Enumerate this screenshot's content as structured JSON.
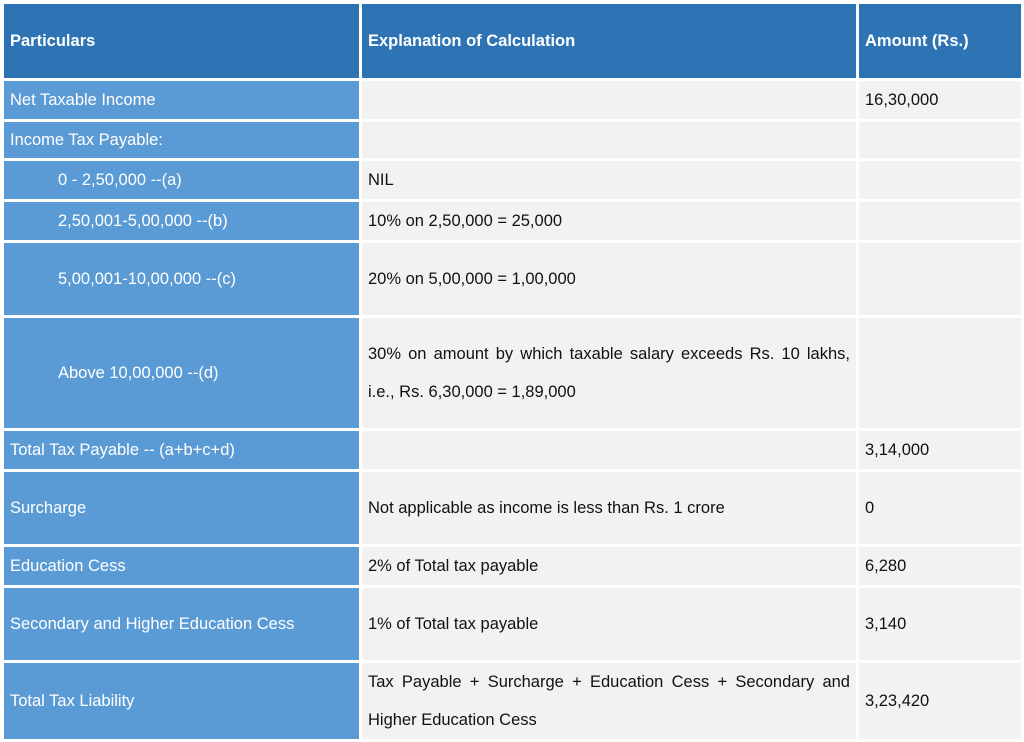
{
  "headers": {
    "particulars": "Particulars",
    "explanation": "Explanation of Calculation",
    "amount": "Amount (Rs.)"
  },
  "rows": [
    {
      "particular": "Net Taxable Income",
      "explanation": "",
      "amount": "16,30,000"
    },
    {
      "particular": "Income Tax Payable:",
      "explanation": "",
      "amount": ""
    },
    {
      "particular": "0 - 2,50,000 --(a)",
      "explanation": "NIL",
      "amount": ""
    },
    {
      "particular": "2,50,001-5,00,000 --(b)",
      "explanation": "10% on 2,50,000 = 25,000",
      "amount": ""
    },
    {
      "particular": "5,00,001-10,00,000 --(c)",
      "explanation": "20% on 5,00,000 = 1,00,000",
      "amount": ""
    },
    {
      "particular": "Above 10,00,000 --(d)",
      "explanation": "30% on amount by which taxable salary exceeds Rs. 10 lakhs, i.e., Rs. 6,30,000 = 1,89,000",
      "amount": ""
    },
    {
      "particular": "Total Tax Payable -- (a+b+c+d)",
      "explanation": "",
      "amount": "3,14,000"
    },
    {
      "particular": "Surcharge",
      "explanation": "Not applicable as income is less than Rs. 1 crore",
      "amount": "0"
    },
    {
      "particular": "Education Cess",
      "explanation": "2% of Total tax payable",
      "amount": "6,280"
    },
    {
      "particular": "Secondary and Higher Education Cess",
      "explanation": "1% of Total tax payable",
      "amount": "3,140"
    },
    {
      "particular": "Total Tax Liability",
      "explanation": "Tax Payable + Surcharge + Education Cess + Secondary and Higher Education Cess",
      "amount": "3,23,420"
    }
  ],
  "colors": {
    "header": "#2E74B5",
    "first_column": "#5B9BD5",
    "cell": "#F2F2F2"
  }
}
